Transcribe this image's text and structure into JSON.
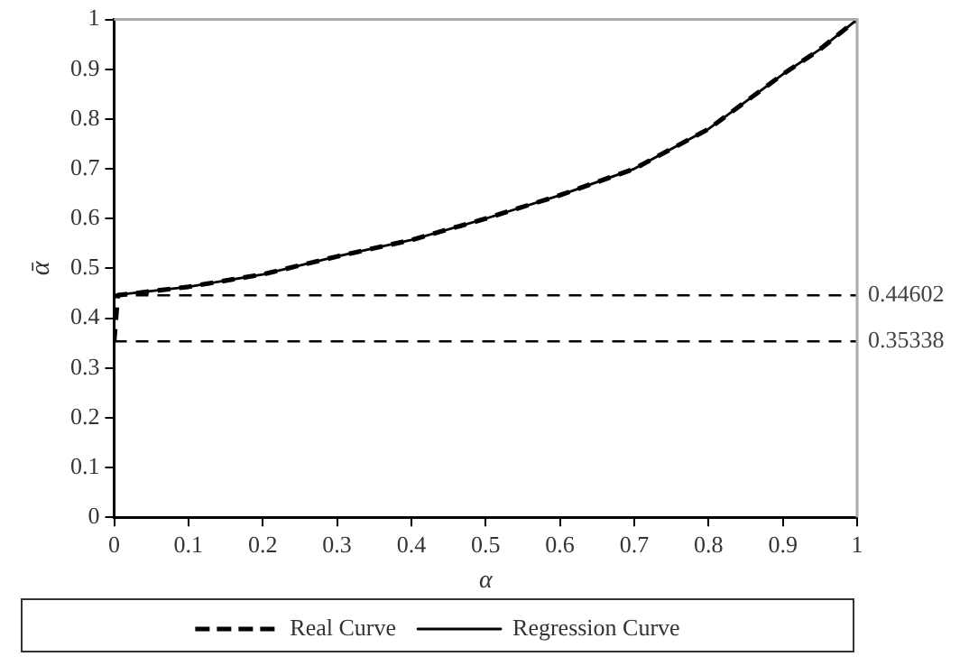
{
  "chart_data": {
    "type": "line",
    "xlabel": "α",
    "ylabel": "ᾱ",
    "xlim": [
      0,
      1
    ],
    "ylim": [
      0,
      1
    ],
    "xticks": [
      0,
      0.1,
      0.2,
      0.3,
      0.4,
      0.5,
      0.6,
      0.7,
      0.8,
      0.9,
      1
    ],
    "yticks": [
      0,
      0.1,
      0.2,
      0.3,
      0.4,
      0.5,
      0.6,
      0.7,
      0.8,
      0.9,
      1
    ],
    "grid": false,
    "legend": "bottom",
    "marker": "none",
    "series": [
      {
        "name": "Real Curve",
        "color": "#000000",
        "line_style": "dashed",
        "x": [
          0,
          0.005,
          0.1,
          0.2,
          0.3,
          0.4,
          0.5,
          0.6,
          0.7,
          0.8,
          0.9,
          0.95,
          1
        ],
        "values": [
          0.353,
          0.446,
          0.463,
          0.488,
          0.524,
          0.557,
          0.6,
          0.647,
          0.7,
          0.78,
          0.89,
          0.94,
          1
        ]
      },
      {
        "name": "Regression Curve",
        "color": "#000000",
        "line_style": "solid",
        "x": [
          0,
          0.1,
          0.2,
          0.3,
          0.4,
          0.5,
          0.6,
          0.7,
          0.8,
          0.9,
          0.95,
          1
        ],
        "values": [
          0.446,
          0.463,
          0.488,
          0.524,
          0.557,
          0.6,
          0.647,
          0.7,
          0.78,
          0.89,
          0.94,
          1
        ]
      }
    ],
    "ref_lines": [
      {
        "axis": "y",
        "value": 0.44602,
        "label": "0.44602",
        "line_style": "dashed"
      },
      {
        "axis": "y",
        "value": 0.35338,
        "label": "0.35338",
        "line_style": "dashed"
      }
    ]
  }
}
